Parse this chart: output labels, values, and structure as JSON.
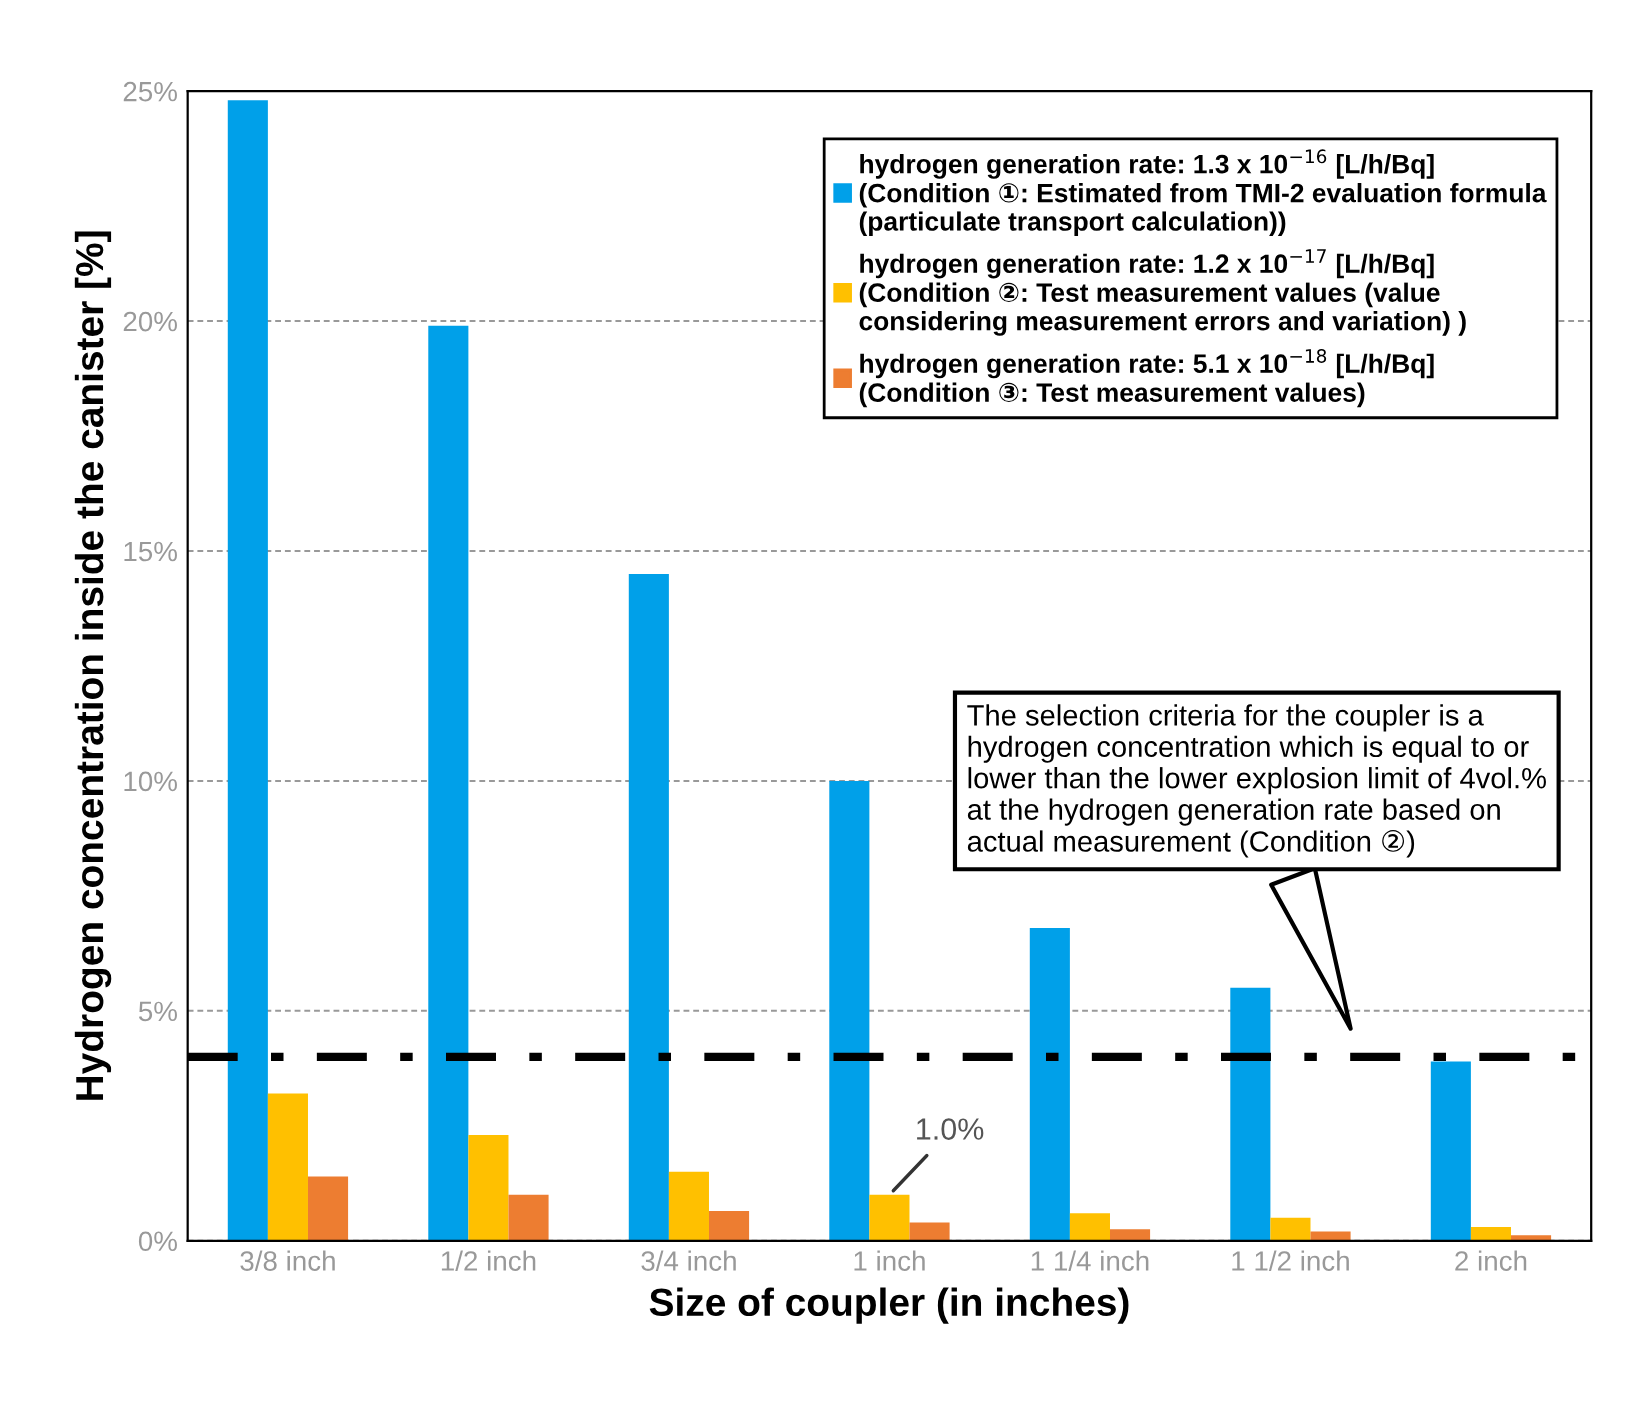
{
  "chart_data": {
    "type": "bar",
    "xlabel": "Size of coupler (in inches)",
    "ylabel": "Hydrogen concentration inside the canister [%]",
    "categories": [
      "3/8 inch",
      "1/2 inch",
      "3/4 inch",
      "1 inch",
      "1 1/4 inch",
      "1 1/2 inch",
      "2 inch"
    ],
    "series": [
      {
        "name": "hydrogen generation rate: 1.3 x 10$^{−16}$ [L/h/Bq]\n(Condition ①: Estimated from TMI-2 evaluation formula\n(particulate transport calculation))",
        "color": "#00a0e9",
        "values": [
          24.8,
          19.9,
          14.5,
          10.0,
          6.8,
          5.5,
          3.9
        ]
      },
      {
        "name": "hydrogen generation rate: 1.2 x 10$^{−17}$ [L/h/Bq]\n(Condition ②: Test measurement values (value\nconsidering measurement errors and variation) )",
        "color": "#ffc000",
        "values": [
          3.2,
          2.3,
          1.5,
          1.0,
          0.6,
          0.5,
          0.3
        ]
      },
      {
        "name": "hydrogen generation rate: 5.1 x 10$^{−18}$ [L/h/Bq]\n(Condition ③: Test measurement values)",
        "color": "#ed7d31",
        "values": [
          1.4,
          1.0,
          0.65,
          0.4,
          0.25,
          0.2,
          0.12
        ]
      }
    ],
    "ylim": [
      0,
      25
    ],
    "yticks": [
      {
        "value": 0,
        "label": "0%"
      },
      {
        "value": 5,
        "label": "5%"
      },
      {
        "value": 10,
        "label": "10%"
      },
      {
        "value": 15,
        "label": "15%"
      },
      {
        "value": 20,
        "label": "20%"
      },
      {
        "value": 25,
        "label": "25%"
      }
    ],
    "grid": "y",
    "legend": "top right",
    "ref_lines": [
      {
        "axis": "y",
        "value": 4,
        "label": null,
        "color": "#000000",
        "line_style": "dashdot"
      }
    ],
    "annotations": [
      {
        "text": "1.0%",
        "x": "1 inch",
        "y": 1.0
      },
      "The selection criteria for the coupler is a\nhydrogen concentration which is equal to or\nlower than the lower explosion limit of 4vol.%\nat the hydrogen generation rate based on\nactual measurement (Condition ②)"
    ]
  }
}
